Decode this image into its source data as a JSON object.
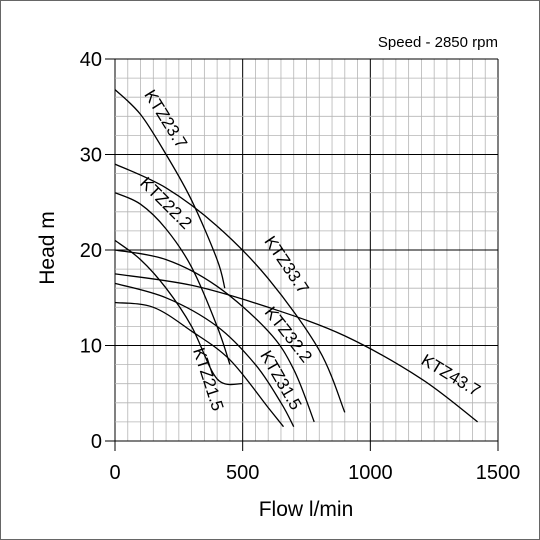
{
  "chart_data": {
    "type": "line",
    "note": "Speed - 2850 rpm",
    "xlabel": "Flow l/min",
    "ylabel": "Head m",
    "xlim": [
      0,
      1500
    ],
    "ylim": [
      0,
      40
    ],
    "x_ticks": [
      0,
      500,
      1000,
      1500
    ],
    "y_ticks": [
      0,
      10,
      20,
      30,
      40
    ],
    "grid": true,
    "series": [
      {
        "name": "KTZ23.7",
        "points": [
          [
            0,
            36.8
          ],
          [
            100,
            34.2
          ],
          [
            200,
            30.0
          ],
          [
            300,
            25.2
          ],
          [
            400,
            19.0
          ],
          [
            430,
            16.0
          ]
        ]
      },
      {
        "name": "KTZ22.2",
        "points": [
          [
            0,
            26.0
          ],
          [
            100,
            24.8
          ],
          [
            200,
            22.2
          ],
          [
            300,
            18.2
          ],
          [
            400,
            12.0
          ],
          [
            450,
            8.0
          ]
        ]
      },
      {
        "name": "KTZ33.7",
        "points": [
          [
            0,
            29.0
          ],
          [
            200,
            26.5
          ],
          [
            400,
            22.5
          ],
          [
            600,
            17.0
          ],
          [
            800,
            9.5
          ],
          [
            900,
            3.0
          ]
        ]
      },
      {
        "name": "KTZ32.2",
        "points": [
          [
            0,
            20.0
          ],
          [
            200,
            19.0
          ],
          [
            400,
            16.2
          ],
          [
            600,
            11.5
          ],
          [
            700,
            7.5
          ],
          [
            780,
            2.0
          ]
        ]
      },
      {
        "name": "KTZ31.5",
        "points": [
          [
            0,
            16.5
          ],
          [
            200,
            15.0
          ],
          [
            400,
            12.0
          ],
          [
            550,
            8.0
          ],
          [
            650,
            4.0
          ],
          [
            700,
            1.5
          ]
        ]
      },
      {
        "name": "KTZ21.5",
        "points": [
          [
            0,
            21.0
          ],
          [
            100,
            19.0
          ],
          [
            200,
            16.0
          ],
          [
            300,
            12.0
          ],
          [
            400,
            6.5
          ],
          [
            500,
            6.0
          ]
        ]
      },
      {
        "name": "KTZ43.7",
        "points": [
          [
            0,
            17.5
          ],
          [
            300,
            16.3
          ],
          [
            600,
            14.0
          ],
          [
            900,
            11.0
          ],
          [
            1200,
            6.5
          ],
          [
            1420,
            2.0
          ]
        ]
      },
      {
        "name": "",
        "points": [
          [
            0,
            14.5
          ],
          [
            150,
            14.0
          ],
          [
            300,
            11.5
          ],
          [
            450,
            8.5
          ],
          [
            600,
            3.5
          ],
          [
            660,
            1.5
          ]
        ]
      }
    ]
  }
}
